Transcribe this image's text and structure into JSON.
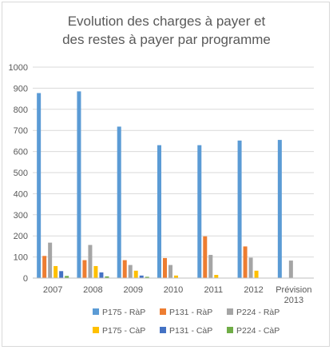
{
  "chart_data": {
    "type": "bar",
    "title_line1": "Evolution des charges à payer et",
    "title_line2": "des restes à payer par programme",
    "categories": [
      [
        "2007"
      ],
      [
        "2008"
      ],
      [
        "2009"
      ],
      [
        "2010"
      ],
      [
        "2011"
      ],
      [
        "2012"
      ],
      [
        "Prévision",
        "2013"
      ]
    ],
    "ylim": [
      0,
      1000
    ],
    "yticks": [
      0,
      100,
      200,
      300,
      400,
      500,
      600,
      700,
      800,
      900,
      1000
    ],
    "grid": true,
    "legend_position": "bottom",
    "series": [
      {
        "name": "P175 - RàP",
        "color": "#5b9bd5",
        "values": [
          877,
          885,
          718,
          630,
          630,
          652,
          655
        ]
      },
      {
        "name": "P131 - RàP",
        "color": "#ed7d31",
        "values": [
          105,
          85,
          85,
          95,
          198,
          150,
          0
        ]
      },
      {
        "name": "P224 - RàP",
        "color": "#a5a5a5",
        "values": [
          168,
          157,
          62,
          62,
          110,
          97,
          83
        ]
      },
      {
        "name": "P175 - CàP",
        "color": "#ffc000",
        "values": [
          57,
          57,
          35,
          12,
          15,
          35,
          0
        ]
      },
      {
        "name": "P131 - CàP",
        "color": "#4472c4",
        "values": [
          33,
          27,
          12,
          0,
          0,
          0,
          0
        ]
      },
      {
        "name": "P224 - CàP",
        "color": "#70ad47",
        "values": [
          10,
          8,
          6,
          0,
          0,
          0,
          0
        ]
      }
    ]
  }
}
